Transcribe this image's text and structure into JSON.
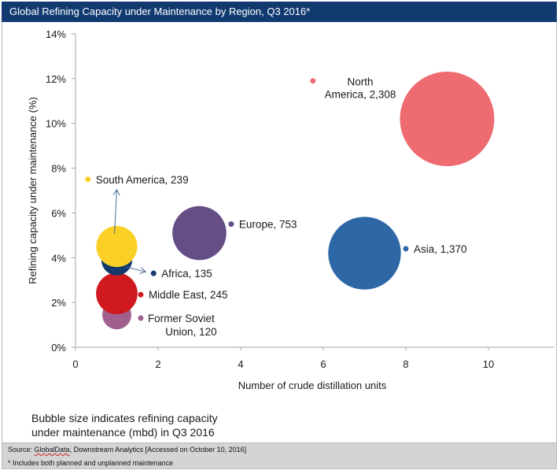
{
  "header": {
    "title": "Global Refining Capacity under Maintenance  by Region, Q3 2016*"
  },
  "note": {
    "line1": "Bubble size indicates refining capacity",
    "line2": "under maintenance (mbd) in Q3 2016"
  },
  "footer": {
    "source_prefix": "Source: ",
    "source_brand": "GlobalData",
    "source_rest": ", Downstream Analytics [Accessed on October 10, 2016]",
    "footnote": "* Includes both planned and unplanned maintenance"
  },
  "chart_data": {
    "type": "bubble",
    "title": "Global Refining Capacity under Maintenance  by Region, Q3 2016*",
    "xlabel": "Number of crude distillation units",
    "ylabel": "Refining capacity under maintenance  (%)",
    "xlim": [
      0,
      11.6
    ],
    "ylim": [
      0,
      14
    ],
    "xticks": [
      0,
      2,
      4,
      6,
      8,
      10
    ],
    "xtick_labels": [
      "0",
      "2",
      "4",
      "6",
      "8",
      "10"
    ],
    "yticks": [
      0,
      2,
      4,
      6,
      8,
      10,
      12,
      14
    ],
    "ytick_labels": [
      "0%",
      "2%",
      "4%",
      "6%",
      "8%",
      "10%",
      "12%",
      "14%"
    ],
    "grid": false,
    "size_note": "Bubble size indicates refining capacity under maintenance (mbd) in Q3 2016",
    "series": [
      {
        "name": "North America",
        "label_lines": [
          "North",
          "America, 2,308"
        ],
        "x": 9,
        "y": 10.2,
        "size": 2308,
        "color": "#ee6b70",
        "label_marker": {
          "x": 5.75,
          "y": 11.9
        },
        "label_align": "middle"
      },
      {
        "name": "Asia",
        "label_lines": [
          "Asia, 1,370"
        ],
        "x": 7,
        "y": 4.2,
        "size": 1370,
        "color": "#2e67a6",
        "label_marker": {
          "x": 8.0,
          "y": 4.4
        },
        "label_align": "start"
      },
      {
        "name": "Europe",
        "label_lines": [
          "Europe, 753"
        ],
        "x": 3,
        "y": 5.1,
        "size": 753,
        "color": "#654d85",
        "label_marker": {
          "x": 3.77,
          "y": 5.5
        },
        "label_align": "start"
      },
      {
        "name": "Middle East",
        "label_lines": [
          "Middle East, 245"
        ],
        "x": 1,
        "y": 2.4,
        "size": 245,
        "color": "#d0191f",
        "label_marker": {
          "x": 1.58,
          "y": 2.35
        },
        "label_align": "start"
      },
      {
        "name": "Africa",
        "label_lines": [
          "Africa, 135"
        ],
        "x": 1,
        "y": 3.9,
        "size": 135,
        "color": "#14396b",
        "label_marker": {
          "x": 1.89,
          "y": 3.3
        },
        "label_align": "start",
        "arrow": true
      },
      {
        "name": "South America",
        "label_lines": [
          "South America, 239"
        ],
        "x": 1,
        "y": 4.5,
        "size": 239,
        "color": "#fbd026",
        "label_marker": {
          "x": 0.3,
          "y": 7.5
        },
        "label_align": "start",
        "arrow": true
      },
      {
        "name": "Former Soviet Union",
        "label_lines": [
          "Former Soviet",
          "Union, 120"
        ],
        "x": 1,
        "y": 1.45,
        "size": 120,
        "color": "#a0608e",
        "label_marker": {
          "x": 1.58,
          "y": 1.3
        },
        "label_align": "start"
      }
    ]
  }
}
